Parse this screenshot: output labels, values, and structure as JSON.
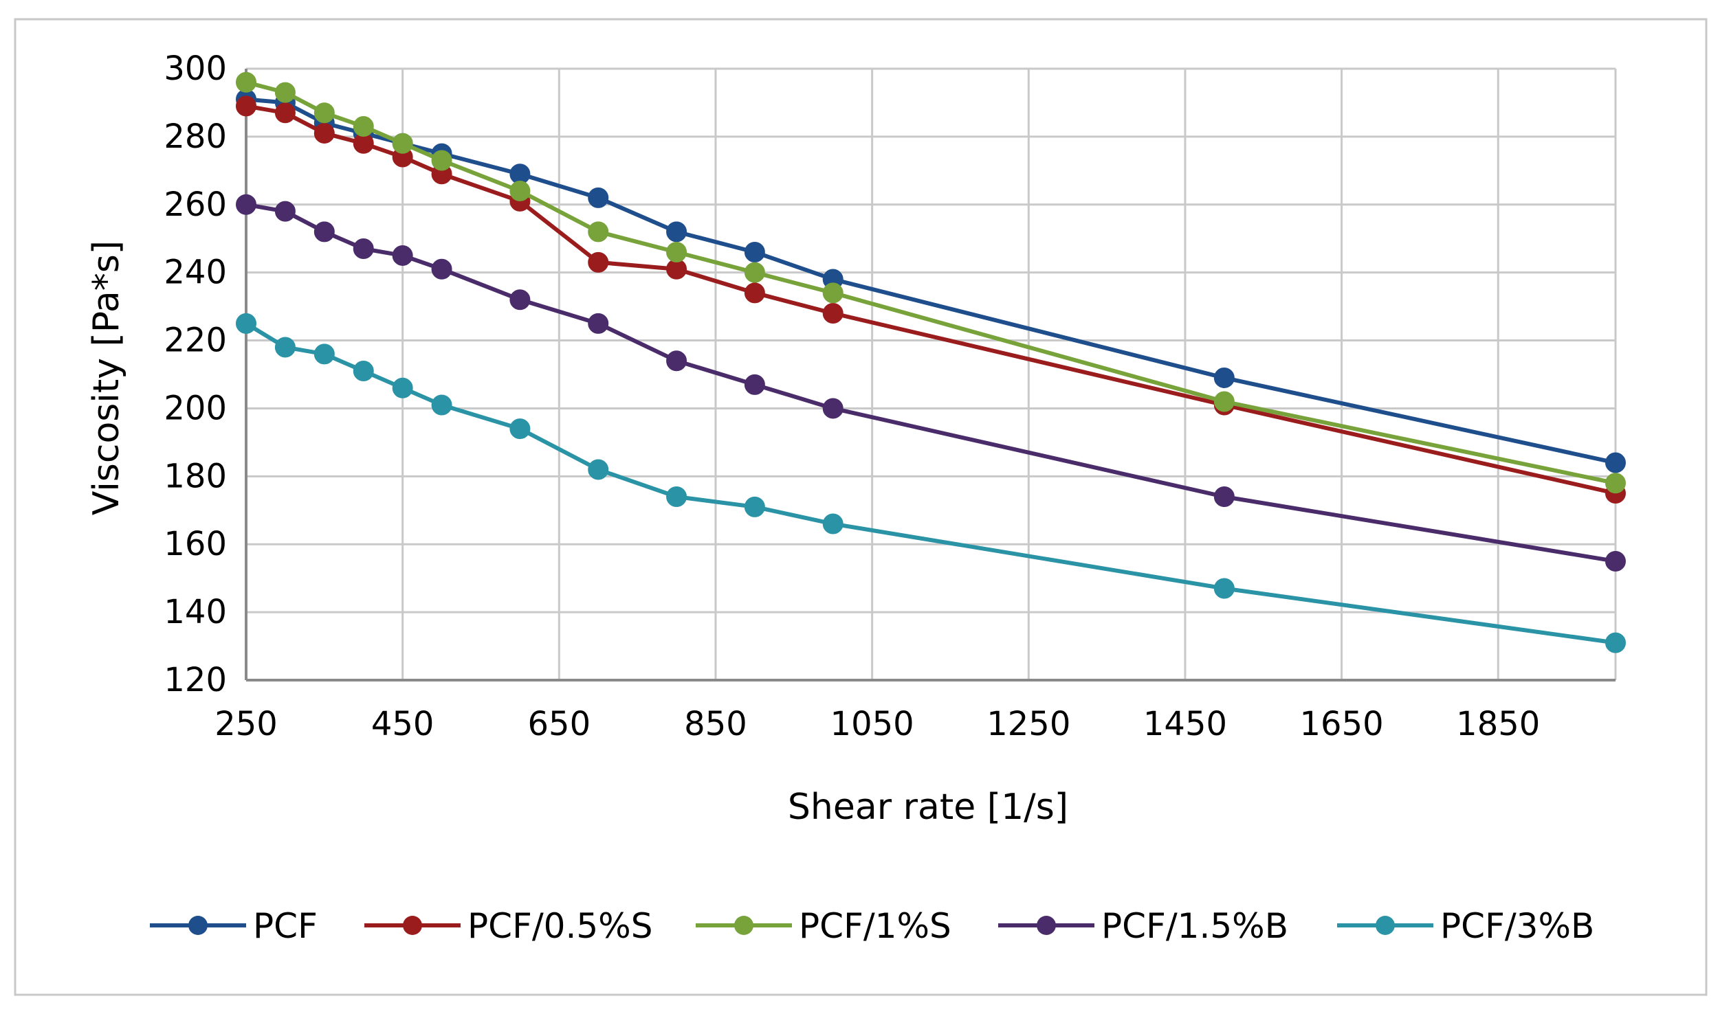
{
  "chart_data": {
    "type": "line",
    "title": "",
    "xlabel": "Shear rate [1/s]",
    "ylabel": "Viscosity [Pa*s]",
    "xlim": [
      250,
      2000
    ],
    "ylim": [
      120,
      300
    ],
    "xticks": [
      250,
      450,
      650,
      850,
      1050,
      1250,
      1450,
      1650,
      1850
    ],
    "yticks": [
      120,
      140,
      160,
      180,
      200,
      220,
      240,
      260,
      280,
      300
    ],
    "x_tick_labels": [
      "250",
      "450",
      "650",
      "850",
      "1050",
      "1250",
      "1450",
      "1650",
      "1850"
    ],
    "y_tick_labels": [
      "120",
      "140",
      "160",
      "180",
      "200",
      "220",
      "240",
      "260",
      "280",
      "300"
    ],
    "grid": true,
    "legend_position": "bottom",
    "x": [
      250,
      300,
      350,
      400,
      450,
      500,
      600,
      700,
      800,
      900,
      1000,
      1500,
      2000
    ],
    "series": [
      {
        "name": "PCF",
        "color": "#1F4E8C",
        "values": [
          291,
          290,
          284,
          281,
          278,
          275,
          269,
          262,
          252,
          246,
          238,
          209,
          184
        ]
      },
      {
        "name": "PCF/0.5%S",
        "color": "#9B1C1C",
        "values": [
          289,
          287,
          281,
          278,
          274,
          269,
          261,
          243,
          241,
          234,
          228,
          201,
          175
        ]
      },
      {
        "name": "PCF/1%S",
        "color": "#77A33A",
        "values": [
          296,
          293,
          287,
          283,
          278,
          273,
          264,
          252,
          246,
          240,
          234,
          202,
          178
        ]
      },
      {
        "name": "PCF/1.5%B",
        "color": "#4A2C6A",
        "values": [
          260,
          258,
          252,
          247,
          245,
          241,
          232,
          225,
          214,
          207,
          200,
          174,
          155
        ]
      },
      {
        "name": "PCF/3%B",
        "color": "#2A93A6",
        "values": [
          225,
          218,
          216,
          211,
          206,
          201,
          194,
          182,
          174,
          171,
          166,
          147,
          131
        ]
      }
    ]
  }
}
